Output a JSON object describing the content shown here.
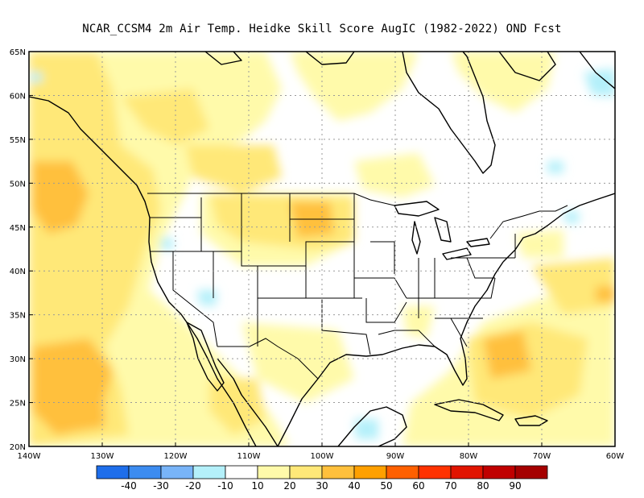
{
  "title": "NCAR_CCSM4  2m Air Temp. Heidke Skill Score AugIC (1982-2022) OND Fcst",
  "lat_labels": [
    "65N",
    "60N",
    "55N",
    "50N",
    "45N",
    "40N",
    "35N",
    "30N",
    "25N",
    "20N"
  ],
  "lon_labels": [
    "140W",
    "130W",
    "120W",
    "110W",
    "100W",
    "90W",
    "80W",
    "70W",
    "60W"
  ],
  "colorbar": {
    "labels": [
      "-40",
      "-30",
      "-20",
      "-10",
      "10",
      "20",
      "30",
      "40",
      "50",
      "60",
      "70",
      "80",
      "90"
    ],
    "colors": [
      "#1e6eeb",
      "#3c8cf0",
      "#78b4f8",
      "#b4f0fa",
      "#ffffff",
      "#fffaaa",
      "#ffe878",
      "#ffc03c",
      "#ffa000",
      "#ff6000",
      "#ff3200",
      "#e11400",
      "#c00000",
      "#a50000"
    ]
  },
  "field_colors": {
    "c10": "#fffaaa",
    "c20": "#ffe878",
    "c30": "#ffc03c",
    "cneg": "#b4f0fa"
  }
}
